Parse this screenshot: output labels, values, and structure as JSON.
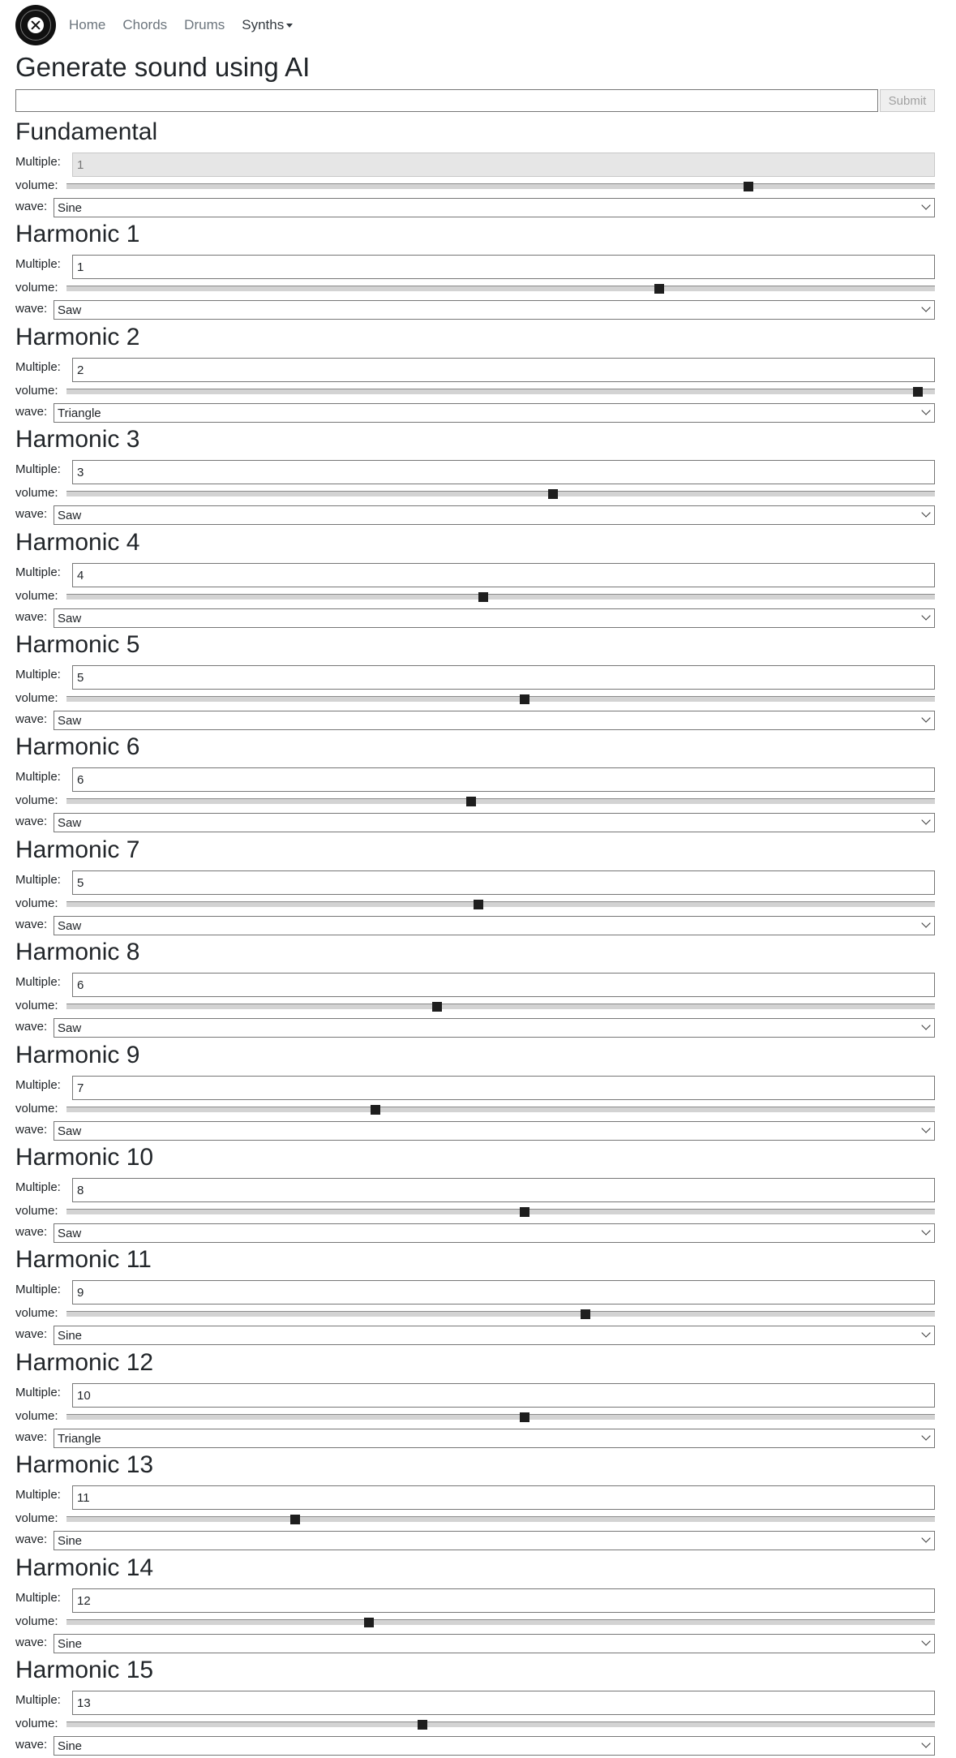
{
  "nav": {
    "items": [
      "Home",
      "Chords",
      "Drums"
    ],
    "dropdown_label": "Synths"
  },
  "page": {
    "title": "Generate sound using AI",
    "prompt_value": "",
    "submit_label": "Submit"
  },
  "labels": {
    "multiple": "Multiple:",
    "volume": "volume:",
    "wave": "wave:"
  },
  "sections": [
    {
      "title": "Fundamental",
      "multiple": "1",
      "volume": 0.785,
      "wave": "Sine",
      "disabled": true
    },
    {
      "title": "Harmonic 1",
      "multiple": "1",
      "volume": 0.683,
      "wave": "Saw"
    },
    {
      "title": "Harmonic 2",
      "multiple": "2",
      "volume": 0.98,
      "wave": "Triangle"
    },
    {
      "title": "Harmonic 3",
      "multiple": "3",
      "volume": 0.56,
      "wave": "Saw"
    },
    {
      "title": "Harmonic 4",
      "multiple": "4",
      "volume": 0.48,
      "wave": "Saw"
    },
    {
      "title": "Harmonic 5",
      "multiple": "5",
      "volume": 0.528,
      "wave": "Saw"
    },
    {
      "title": "Harmonic 6",
      "multiple": "6",
      "volume": 0.466,
      "wave": "Saw"
    },
    {
      "title": "Harmonic 7",
      "multiple": "5",
      "volume": 0.474,
      "wave": "Saw"
    },
    {
      "title": "Harmonic 8",
      "multiple": "6",
      "volume": 0.427,
      "wave": "Saw"
    },
    {
      "title": "Harmonic 9",
      "multiple": "7",
      "volume": 0.356,
      "wave": "Saw"
    },
    {
      "title": "Harmonic 10",
      "multiple": "8",
      "volume": 0.528,
      "wave": "Saw"
    },
    {
      "title": "Harmonic 11",
      "multiple": "9",
      "volume": 0.598,
      "wave": "Sine"
    },
    {
      "title": "Harmonic 12",
      "multiple": "10",
      "volume": 0.528,
      "wave": "Triangle"
    },
    {
      "title": "Harmonic 13",
      "multiple": "11",
      "volume": 0.263,
      "wave": "Sine"
    },
    {
      "title": "Harmonic 14",
      "multiple": "12",
      "volume": 0.348,
      "wave": "Sine"
    },
    {
      "title": "Harmonic 15",
      "multiple": "13",
      "volume": 0.41,
      "wave": "Sine"
    }
  ]
}
